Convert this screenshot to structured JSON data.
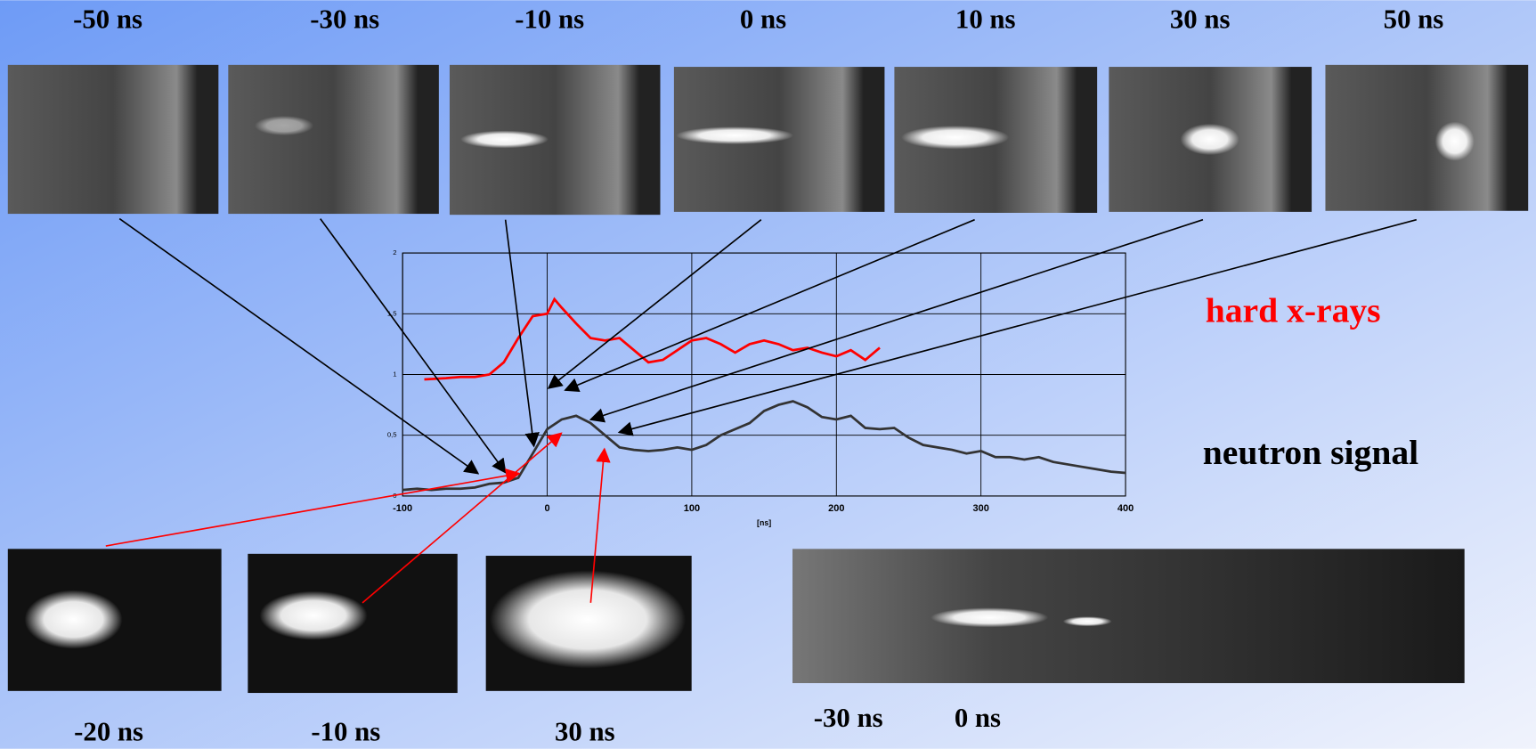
{
  "top_images": {
    "labels": [
      "-50 ns",
      "-30 ns",
      "-10 ns",
      "0 ns",
      "10 ns",
      "30 ns",
      "50 ns"
    ]
  },
  "bottom_images": {
    "labels": [
      "-20 ns",
      "-10 ns",
      "30 ns"
    ]
  },
  "streak_image": {
    "labels": [
      "-30 ns",
      "0 ns"
    ]
  },
  "chart_data": {
    "type": "line",
    "xlabel": "[ns]",
    "xlim": [
      -100,
      400
    ],
    "xticks": [
      -100,
      0,
      100,
      200,
      300,
      400
    ],
    "ylim": [
      0,
      2
    ],
    "yticks": [
      0,
      {
        "value": 0.5,
        "label": "0,5"
      },
      1,
      {
        "value": 1.5,
        "label": "1,5"
      },
      2
    ],
    "grid": true,
    "series": [
      {
        "name": "hard x-rays",
        "color": "#ff0000",
        "x": [
          -85,
          -70,
          -60,
          -50,
          -40,
          -30,
          -20,
          -10,
          0,
          5,
          10,
          20,
          30,
          40,
          50,
          60,
          70,
          80,
          90,
          100,
          110,
          120,
          130,
          140,
          150,
          160,
          170,
          180,
          190,
          200,
          210,
          220,
          230
        ],
        "values": [
          0.96,
          0.97,
          0.98,
          0.98,
          1.0,
          1.1,
          1.3,
          1.48,
          1.5,
          1.62,
          1.55,
          1.42,
          1.3,
          1.28,
          1.3,
          1.2,
          1.1,
          1.12,
          1.2,
          1.28,
          1.3,
          1.25,
          1.18,
          1.25,
          1.28,
          1.25,
          1.2,
          1.22,
          1.18,
          1.15,
          1.2,
          1.12,
          1.22
        ]
      },
      {
        "name": "neutron signal",
        "color": "#333333",
        "x": [
          -100,
          -90,
          -80,
          -70,
          -60,
          -50,
          -40,
          -30,
          -20,
          -10,
          0,
          10,
          20,
          30,
          40,
          50,
          60,
          70,
          80,
          90,
          100,
          110,
          120,
          130,
          140,
          150,
          160,
          170,
          180,
          190,
          200,
          210,
          220,
          230,
          240,
          250,
          260,
          270,
          280,
          290,
          300,
          310,
          320,
          330,
          340,
          350,
          360,
          370,
          380,
          390,
          400
        ],
        "values": [
          0.05,
          0.06,
          0.05,
          0.06,
          0.06,
          0.07,
          0.1,
          0.11,
          0.15,
          0.35,
          0.55,
          0.63,
          0.66,
          0.6,
          0.5,
          0.4,
          0.38,
          0.37,
          0.38,
          0.4,
          0.38,
          0.42,
          0.5,
          0.55,
          0.6,
          0.7,
          0.75,
          0.78,
          0.73,
          0.65,
          0.63,
          0.66,
          0.56,
          0.55,
          0.56,
          0.48,
          0.42,
          0.4,
          0.38,
          0.35,
          0.37,
          0.32,
          0.32,
          0.3,
          0.32,
          0.28,
          0.26,
          0.24,
          0.22,
          0.2,
          0.19
        ]
      }
    ]
  }
}
